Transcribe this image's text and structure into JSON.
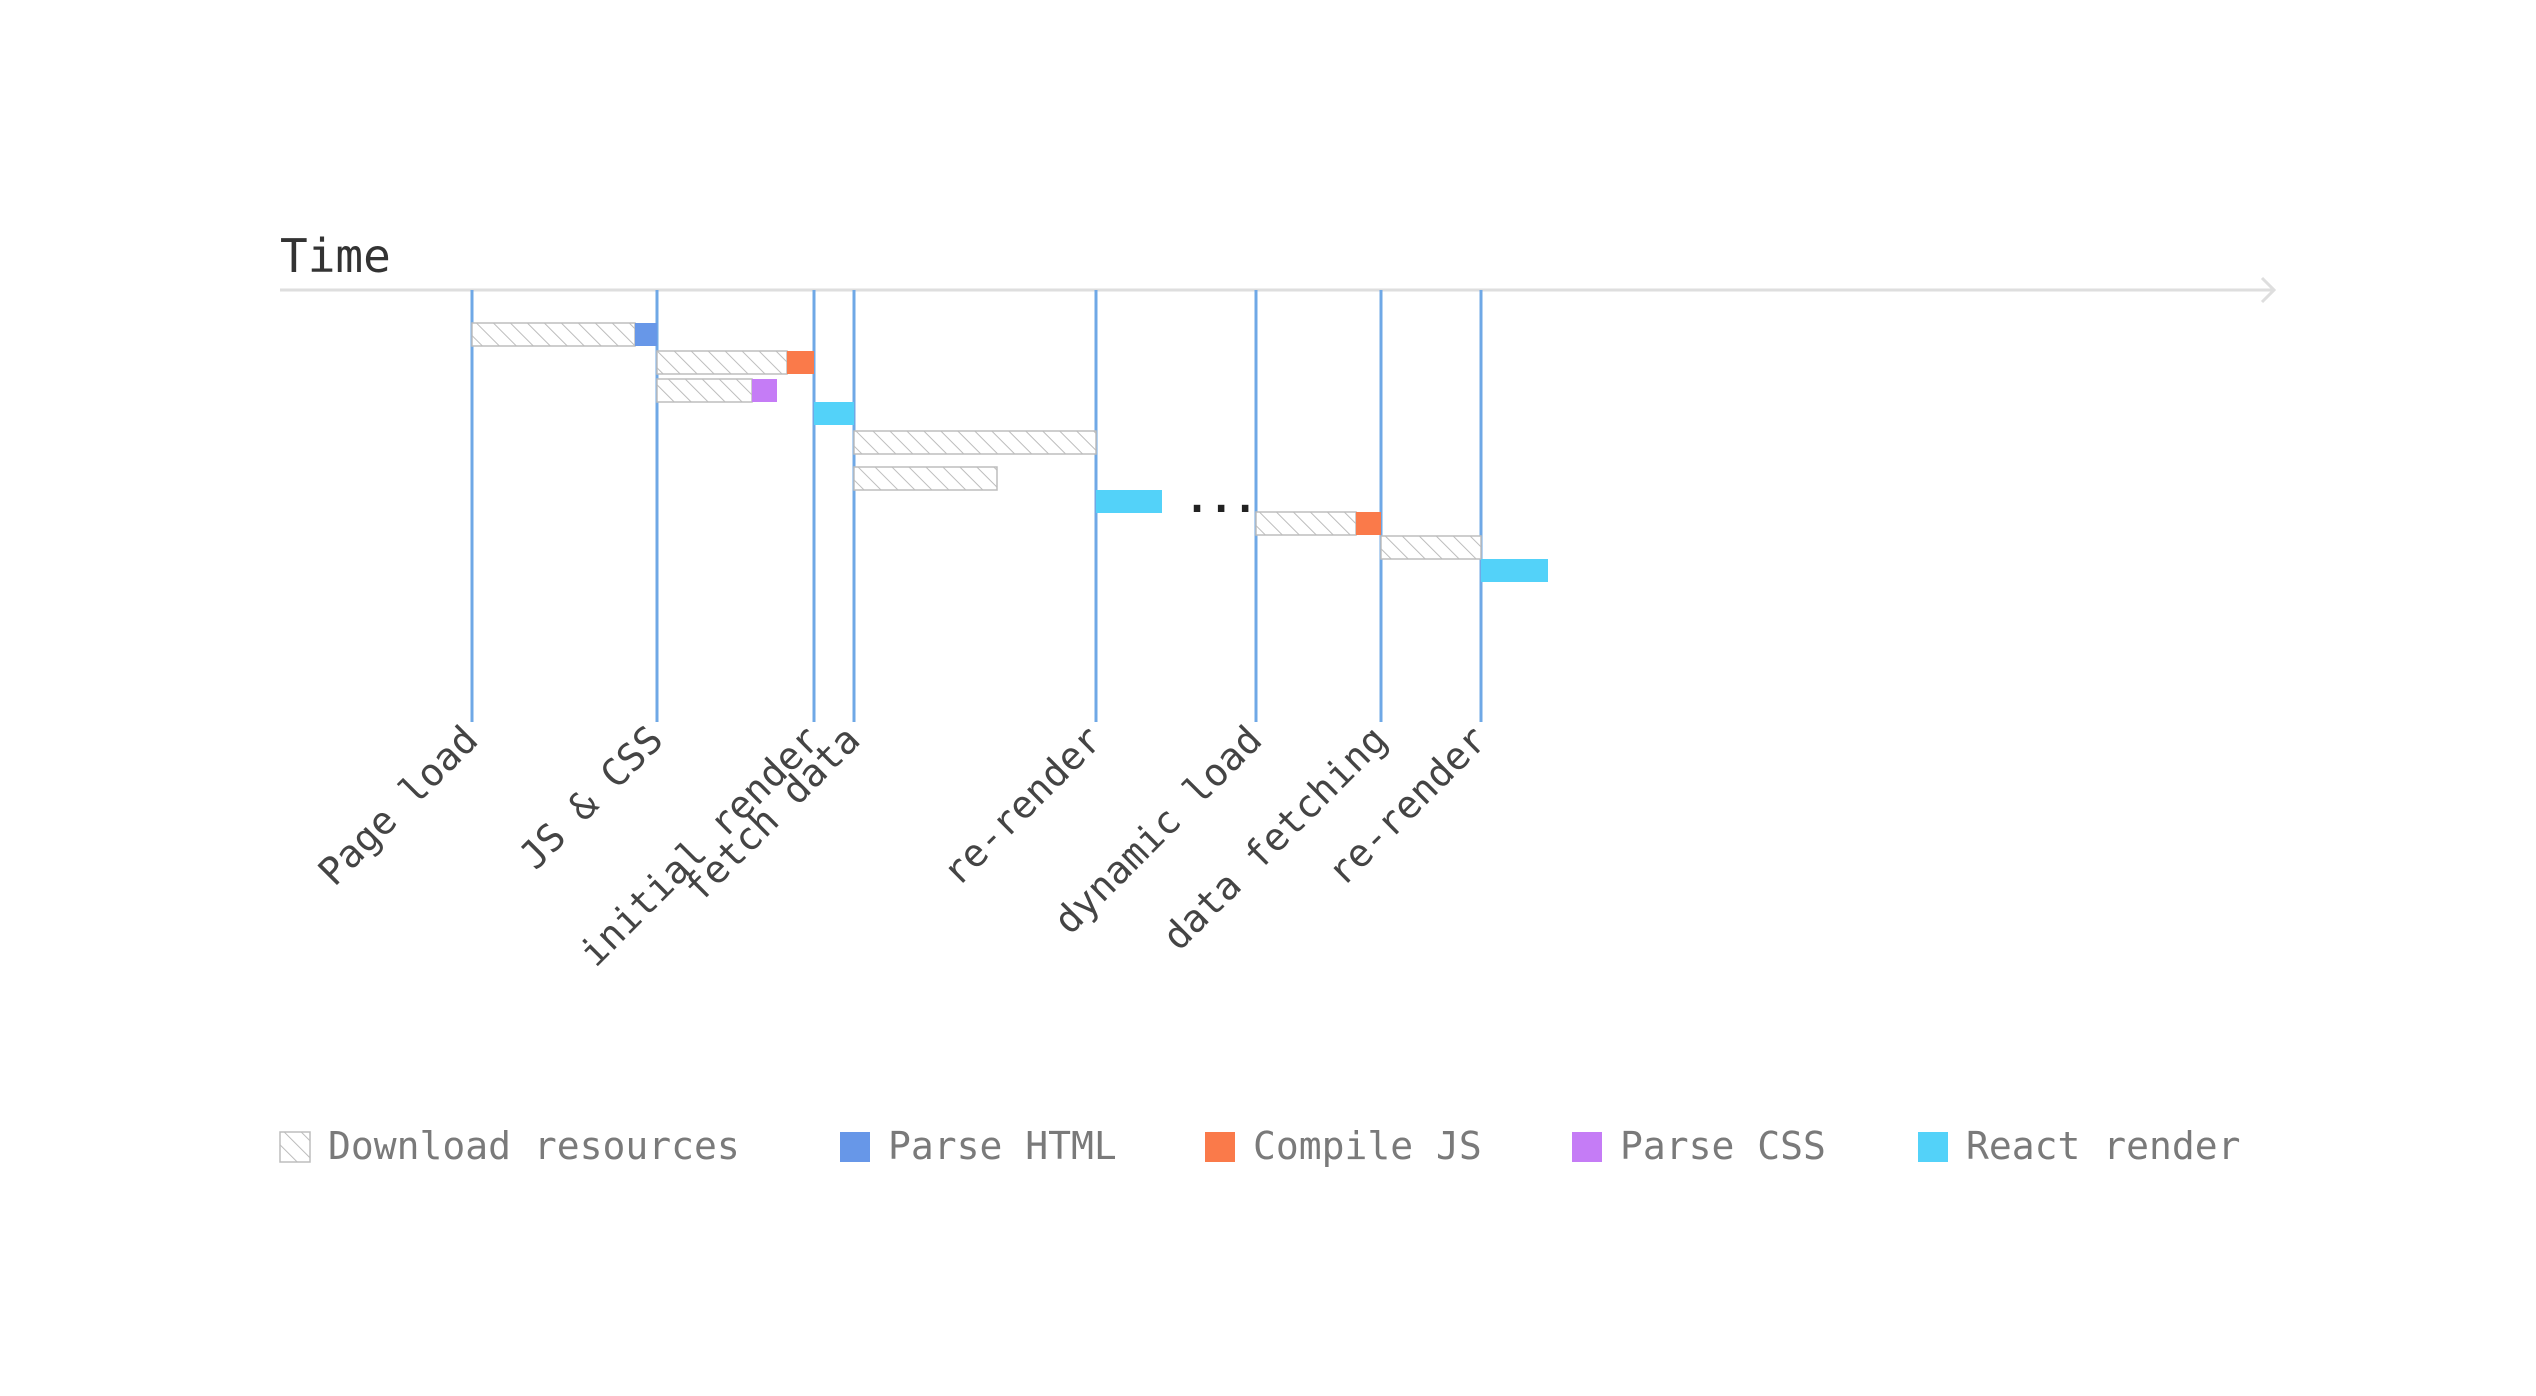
{
  "axis": {
    "title": "Time",
    "axis_color": "#dedede",
    "milestone_line_color": "#6fa8e6"
  },
  "colors": {
    "download": "#bdbdbd",
    "parse_html": "#6797e8",
    "compile_js": "#fa7a4a",
    "parse_css": "#c57cf6",
    "react_render": "#53d2f9"
  },
  "milestones": [
    {
      "label": "Page load"
    },
    {
      "label": "JS & CSS"
    },
    {
      "label": "initial render"
    },
    {
      "label": "fetch data"
    },
    {
      "label": "re-render"
    },
    {
      "label": "dynamic load"
    },
    {
      "label": "data fetching"
    },
    {
      "label": "re-render"
    }
  ],
  "gap_marker": "...",
  "legend": [
    {
      "key": "download",
      "label": "Download resources",
      "icon": "hatched-square-icon"
    },
    {
      "key": "parse_html",
      "label": "Parse HTML",
      "icon": "blue-square-icon"
    },
    {
      "key": "compile_js",
      "label": "Compile JS",
      "icon": "orange-square-icon"
    },
    {
      "key": "parse_css",
      "label": "Parse CSS",
      "icon": "purple-square-icon"
    },
    {
      "key": "react_render",
      "label": "React render",
      "icon": "cyan-square-icon"
    }
  ]
}
